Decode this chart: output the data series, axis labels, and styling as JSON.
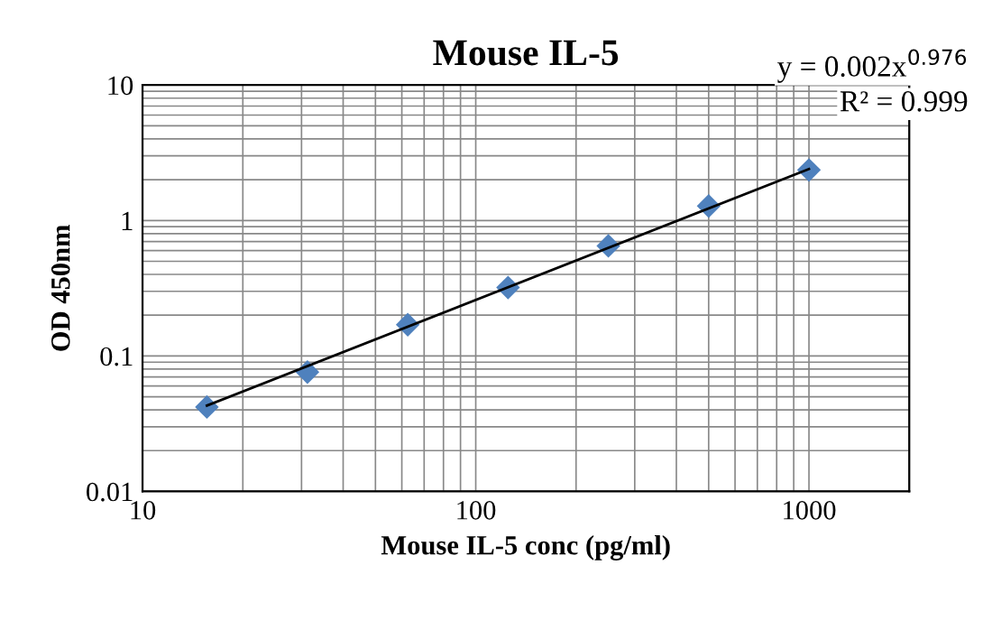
{
  "chart_data": {
    "type": "scatter",
    "title": "Mouse IL-5",
    "xlabel": "Mouse IL-5 conc (pg/ml)",
    "ylabel": "OD 450nm",
    "log": "xy",
    "xlim": [
      10,
      2000
    ],
    "xticks": [
      10,
      100,
      1000
    ],
    "ylim": [
      0.01,
      10
    ],
    "yticks": [
      0.01,
      0.1,
      1,
      10
    ],
    "grid": true,
    "marker": "diamond",
    "series": [
      {
        "color": "#4f81bd",
        "x": [
          15.6,
          31.25,
          62.5,
          125,
          250,
          500,
          1000
        ],
        "values": [
          0.042,
          0.076,
          0.17,
          0.32,
          0.65,
          1.28,
          2.36
        ]
      },
      {
        "type": "line",
        "color": "#000000",
        "marker": "none",
        "x": [
          15.6,
          1000
        ],
        "values": [
          0.043,
          2.4
        ]
      }
    ],
    "annotations": [
      "y = 0.002x$^{0.976}$",
      "R² = 0.999"
    ]
  }
}
